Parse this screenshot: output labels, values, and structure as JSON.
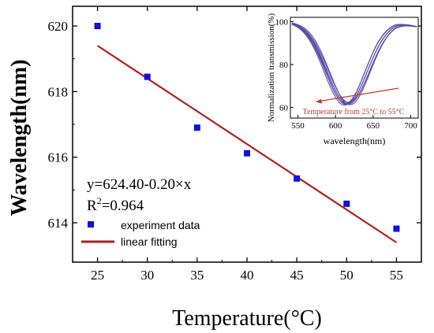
{
  "chart_data": {
    "type": "scatter",
    "xlabel": "Temperature(°C)",
    "ylabel": "Wavelength(nm)",
    "xlim": [
      22.5,
      57.5
    ],
    "ylim": [
      612.8,
      620.6
    ],
    "x_ticks": [
      "25",
      "30",
      "35",
      "40",
      "45",
      "50",
      "55"
    ],
    "y_ticks": [
      "614",
      "616",
      "618",
      "620"
    ],
    "grid": false,
    "legend_position": "bottom-left",
    "series": [
      {
        "name": "experiment data",
        "kind": "scatter",
        "color": "#1010e0",
        "points": [
          {
            "x": 25,
            "y": 620.0
          },
          {
            "x": 30,
            "y": 618.45
          },
          {
            "x": 35,
            "y": 616.9
          },
          {
            "x": 40,
            "y": 616.12
          },
          {
            "x": 45,
            "y": 615.35
          },
          {
            "x": 50,
            "y": 614.58
          },
          {
            "x": 55,
            "y": 613.82
          }
        ]
      },
      {
        "name": "linear fitting",
        "kind": "line",
        "color": "#b21e1e",
        "points": [
          {
            "x": 25,
            "y": 619.4
          },
          {
            "x": 55,
            "y": 613.4
          }
        ]
      }
    ],
    "annotations": {
      "equation": "y=624.40-0.20×x",
      "r2_prefix": "R",
      "r2_sup": "2",
      "r2_value": "=0.964"
    },
    "inset": {
      "type": "line",
      "xlabel": "wavelength(nm)",
      "ylabel": "Normalization transmission(%)",
      "xlim": [
        540,
        710
      ],
      "ylim": [
        55,
        102
      ],
      "x_ticks": [
        "550",
        "600",
        "650",
        "700"
      ],
      "y_ticks": [
        "60",
        "80",
        "100"
      ],
      "annotation": "Temperature from 25°C to 55°C",
      "line_color": "#5a4aa8",
      "arrow_color": "#c0392b",
      "curves": [
        {
          "dip_x": 612.0,
          "dip_y": 61.0,
          "half_width": 38
        },
        {
          "dip_x": 613.2,
          "dip_y": 61.8,
          "half_width": 37
        },
        {
          "dip_x": 614.4,
          "dip_y": 61.3,
          "half_width": 39
        },
        {
          "dip_x": 615.6,
          "dip_y": 62.0,
          "half_width": 38
        },
        {
          "dip_x": 616.8,
          "dip_y": 61.5,
          "half_width": 40
        },
        {
          "dip_x": 618.0,
          "dip_y": 62.3,
          "half_width": 39
        },
        {
          "dip_x": 619.2,
          "dip_y": 61.2,
          "half_width": 38
        }
      ]
    }
  }
}
